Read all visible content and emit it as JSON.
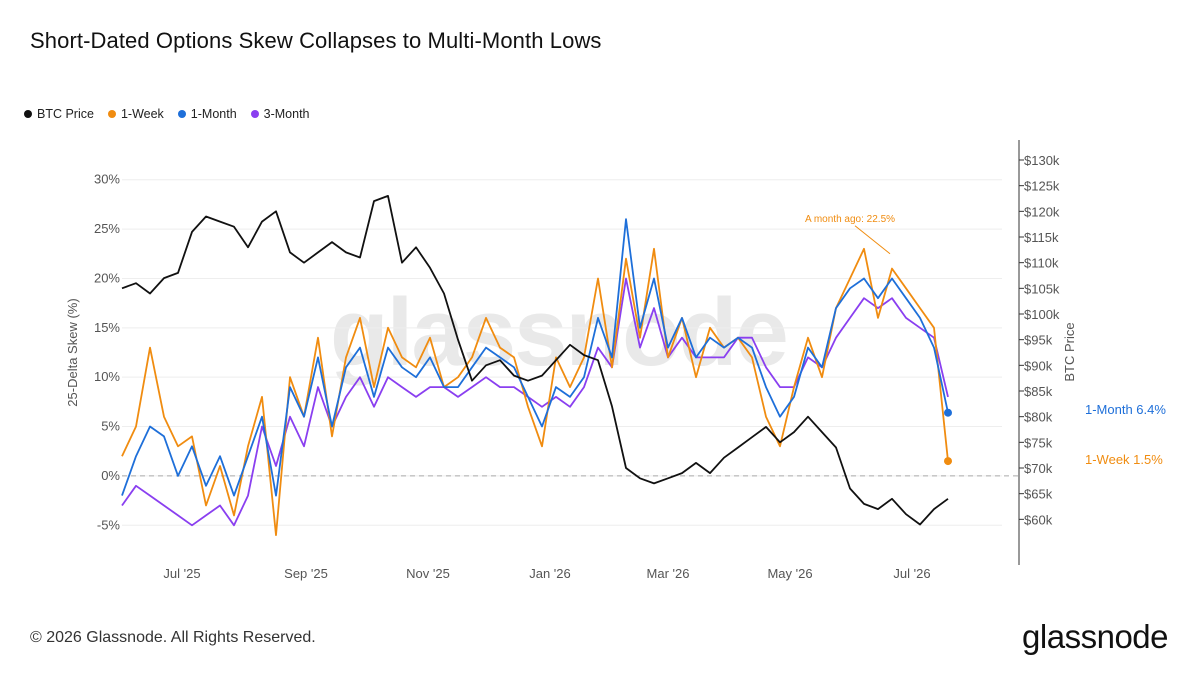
{
  "title": "Short-Dated Options Skew Collapses to Multi-Month Lows",
  "legend": [
    {
      "label": "BTC Price",
      "color": "#111111"
    },
    {
      "label": "1-Week",
      "color": "#f08c10"
    },
    {
      "label": "1-Month",
      "color": "#1e6fd9"
    },
    {
      "label": "3-Month",
      "color": "#8a3ff0"
    }
  ],
  "footer": "© 2026 Glassnode. All Rights Reserved.",
  "brand": "glassnode",
  "watermark": "glassnode",
  "chart_data": {
    "type": "line",
    "ylabel_left": "25-Delta Skew (%)",
    "ylabel_right": "BTC Price",
    "ylim_left": [
      -7,
      32
    ],
    "ylim_right": [
      55000,
      130000
    ],
    "yticks_left": [
      {
        "v": 30,
        "label": "30%"
      },
      {
        "v": 25,
        "label": "25%"
      },
      {
        "v": 20,
        "label": "20%"
      },
      {
        "v": 15,
        "label": "15%"
      },
      {
        "v": 10,
        "label": "10%"
      },
      {
        "v": 5,
        "label": "5%"
      },
      {
        "v": 0,
        "label": "0%"
      },
      {
        "v": -5,
        "label": "-5%"
      }
    ],
    "yticks_right": [
      {
        "v": 130000,
        "label": "$130k"
      },
      {
        "v": 125000,
        "label": "$125k"
      },
      {
        "v": 120000,
        "label": "$120k"
      },
      {
        "v": 115000,
        "label": "$115k"
      },
      {
        "v": 110000,
        "label": "$110k"
      },
      {
        "v": 105000,
        "label": "$105k"
      },
      {
        "v": 100000,
        "label": "$100k"
      },
      {
        "v": 95000,
        "label": "$95k"
      },
      {
        "v": 90000,
        "label": "$90k"
      },
      {
        "v": 85000,
        "label": "$85k"
      },
      {
        "v": 80000,
        "label": "$80k"
      },
      {
        "v": 75000,
        "label": "$75k"
      },
      {
        "v": 70000,
        "label": "$70k"
      },
      {
        "v": 65000,
        "label": "$65k"
      },
      {
        "v": 60000,
        "label": "$60k"
      }
    ],
    "xlim": [
      "2025-06-01",
      "2026-07-31"
    ],
    "xticks": [
      {
        "v": "2025-07-01",
        "label": "Jul '25"
      },
      {
        "v": "2025-09-01",
        "label": "Sep '25"
      },
      {
        "v": "2025-11-01",
        "label": "Nov '25"
      },
      {
        "v": "2026-01-01",
        "label": "Jan '26"
      },
      {
        "v": "2026-03-01",
        "label": "Mar '26"
      },
      {
        "v": "2026-05-01",
        "label": "May '26"
      },
      {
        "v": "2026-07-01",
        "label": "Jul '26"
      }
    ],
    "zero_line": true,
    "series": [
      {
        "name": "BTC Price",
        "color": "#111111",
        "axis": "right",
        "x": [
          "2025-06-01",
          "2025-06-08",
          "2025-06-15",
          "2025-06-22",
          "2025-06-29",
          "2025-07-06",
          "2025-07-13",
          "2025-07-20",
          "2025-07-27",
          "2025-08-03",
          "2025-08-10",
          "2025-08-17",
          "2025-08-24",
          "2025-08-31",
          "2025-09-07",
          "2025-09-14",
          "2025-09-21",
          "2025-09-28",
          "2025-10-05",
          "2025-10-12",
          "2025-10-19",
          "2025-10-26",
          "2025-11-02",
          "2025-11-09",
          "2025-11-16",
          "2025-11-23",
          "2025-11-30",
          "2025-12-07",
          "2025-12-14",
          "2025-12-21",
          "2025-12-28",
          "2026-01-04",
          "2026-01-11",
          "2026-01-18",
          "2026-01-25",
          "2026-02-01",
          "2026-02-08",
          "2026-02-15",
          "2026-02-22",
          "2026-03-01",
          "2026-03-08",
          "2026-03-15",
          "2026-03-22",
          "2026-03-29",
          "2026-04-05",
          "2026-04-12",
          "2026-04-19",
          "2026-04-26",
          "2026-05-03",
          "2026-05-10",
          "2026-05-17",
          "2026-05-24",
          "2026-05-31",
          "2026-06-07",
          "2026-06-14",
          "2026-06-21",
          "2026-06-28",
          "2026-07-05",
          "2026-07-12",
          "2026-07-19"
        ],
        "values": [
          105000,
          106000,
          104000,
          107000,
          108000,
          116000,
          119000,
          118000,
          117000,
          113000,
          118000,
          120000,
          112000,
          110000,
          112000,
          114000,
          112000,
          111000,
          122000,
          123000,
          110000,
          113000,
          109000,
          104000,
          95000,
          87000,
          90000,
          91000,
          88000,
          87000,
          88000,
          91000,
          94000,
          92000,
          91000,
          82000,
          70000,
          68000,
          67000,
          68000,
          69000,
          71000,
          69000,
          72000,
          74000,
          76000,
          78000,
          75000,
          77000,
          80000,
          77000,
          74000,
          66000,
          63000,
          62000,
          64000,
          61000,
          59000,
          62000,
          64000
        ]
      },
      {
        "name": "1-Week",
        "color": "#f08c10",
        "axis": "left",
        "x": [
          "2025-06-01",
          "2025-06-08",
          "2025-06-15",
          "2025-06-22",
          "2025-06-29",
          "2025-07-06",
          "2025-07-13",
          "2025-07-20",
          "2025-07-27",
          "2025-08-03",
          "2025-08-10",
          "2025-08-17",
          "2025-08-24",
          "2025-08-31",
          "2025-09-07",
          "2025-09-14",
          "2025-09-21",
          "2025-09-28",
          "2025-10-05",
          "2025-10-12",
          "2025-10-19",
          "2025-10-26",
          "2025-11-02",
          "2025-11-09",
          "2025-11-16",
          "2025-11-23",
          "2025-11-30",
          "2025-12-07",
          "2025-12-14",
          "2025-12-21",
          "2025-12-28",
          "2026-01-04",
          "2026-01-11",
          "2026-01-18",
          "2026-01-25",
          "2026-02-01",
          "2026-02-08",
          "2026-02-15",
          "2026-02-22",
          "2026-03-01",
          "2026-03-08",
          "2026-03-15",
          "2026-03-22",
          "2026-03-29",
          "2026-04-05",
          "2026-04-12",
          "2026-04-19",
          "2026-04-26",
          "2026-05-03",
          "2026-05-10",
          "2026-05-17",
          "2026-05-24",
          "2026-05-31",
          "2026-06-07",
          "2026-06-14",
          "2026-06-21",
          "2026-06-28",
          "2026-07-05",
          "2026-07-12",
          "2026-07-19"
        ],
        "values": [
          2,
          5,
          13,
          6,
          3,
          4,
          -3,
          1,
          -4,
          3,
          8,
          -6,
          10,
          6,
          14,
          4,
          12,
          16,
          9,
          15,
          12,
          11,
          14,
          9,
          10,
          12,
          16,
          13,
          12,
          7,
          3,
          12,
          9,
          12,
          20,
          11,
          22,
          14,
          23,
          12,
          16,
          10,
          15,
          13,
          14,
          12,
          6,
          3,
          9,
          14,
          10,
          17,
          20,
          23,
          16,
          21,
          19,
          17,
          15,
          1.5
        ]
      },
      {
        "name": "1-Month",
        "color": "#1e6fd9",
        "axis": "left",
        "x": [
          "2025-06-01",
          "2025-06-08",
          "2025-06-15",
          "2025-06-22",
          "2025-06-29",
          "2025-07-06",
          "2025-07-13",
          "2025-07-20",
          "2025-07-27",
          "2025-08-03",
          "2025-08-10",
          "2025-08-17",
          "2025-08-24",
          "2025-08-31",
          "2025-09-07",
          "2025-09-14",
          "2025-09-21",
          "2025-09-28",
          "2025-10-05",
          "2025-10-12",
          "2025-10-19",
          "2025-10-26",
          "2025-11-02",
          "2025-11-09",
          "2025-11-16",
          "2025-11-23",
          "2025-11-30",
          "2025-12-07",
          "2025-12-14",
          "2025-12-21",
          "2025-12-28",
          "2026-01-04",
          "2026-01-11",
          "2026-01-18",
          "2026-01-25",
          "2026-02-01",
          "2026-02-08",
          "2026-02-15",
          "2026-02-22",
          "2026-03-01",
          "2026-03-08",
          "2026-03-15",
          "2026-03-22",
          "2026-03-29",
          "2026-04-05",
          "2026-04-12",
          "2026-04-19",
          "2026-04-26",
          "2026-05-03",
          "2026-05-10",
          "2026-05-17",
          "2026-05-24",
          "2026-05-31",
          "2026-06-07",
          "2026-06-14",
          "2026-06-21",
          "2026-06-28",
          "2026-07-05",
          "2026-07-12",
          "2026-07-19"
        ],
        "values": [
          -2,
          2,
          5,
          4,
          0,
          3,
          -1,
          2,
          -2,
          2,
          6,
          -2,
          9,
          6,
          12,
          5,
          11,
          13,
          8,
          13,
          11,
          10,
          12,
          9,
          9,
          11,
          13,
          12,
          11,
          8,
          5,
          9,
          8,
          10,
          16,
          12,
          26,
          15,
          20,
          13,
          16,
          12,
          14,
          13,
          14,
          13,
          9,
          6,
          8,
          13,
          11,
          17,
          19,
          20,
          18,
          20,
          18,
          16,
          13,
          6.4
        ]
      },
      {
        "name": "3-Month",
        "color": "#8a3ff0",
        "axis": "left",
        "x": [
          "2025-06-01",
          "2025-06-08",
          "2025-06-15",
          "2025-06-22",
          "2025-06-29",
          "2025-07-06",
          "2025-07-13",
          "2025-07-20",
          "2025-07-27",
          "2025-08-03",
          "2025-08-10",
          "2025-08-17",
          "2025-08-24",
          "2025-08-31",
          "2025-09-07",
          "2025-09-14",
          "2025-09-21",
          "2025-09-28",
          "2025-10-05",
          "2025-10-12",
          "2025-10-19",
          "2025-10-26",
          "2025-11-02",
          "2025-11-09",
          "2025-11-16",
          "2025-11-23",
          "2025-11-30",
          "2025-12-07",
          "2025-12-14",
          "2025-12-21",
          "2025-12-28",
          "2026-01-04",
          "2026-01-11",
          "2026-01-18",
          "2026-01-25",
          "2026-02-01",
          "2026-02-08",
          "2026-02-15",
          "2026-02-22",
          "2026-03-01",
          "2026-03-08",
          "2026-03-15",
          "2026-03-22",
          "2026-03-29",
          "2026-04-05",
          "2026-04-12",
          "2026-04-19",
          "2026-04-26",
          "2026-05-03",
          "2026-05-10",
          "2026-05-17",
          "2026-05-24",
          "2026-05-31",
          "2026-06-07",
          "2026-06-14",
          "2026-06-21",
          "2026-06-28",
          "2026-07-05",
          "2026-07-12",
          "2026-07-19"
        ],
        "values": [
          -3,
          -1,
          -2,
          -3,
          -4,
          -5,
          -4,
          -3,
          -5,
          -2,
          5,
          1,
          6,
          3,
          9,
          5,
          8,
          10,
          7,
          10,
          9,
          8,
          9,
          9,
          8,
          9,
          10,
          9,
          9,
          8,
          7,
          8,
          7,
          9,
          13,
          11,
          20,
          13,
          17,
          12,
          14,
          12,
          12,
          12,
          14,
          14,
          11,
          9,
          9,
          12,
          11,
          14,
          16,
          18,
          17,
          18,
          16,
          15,
          14,
          8
        ]
      }
    ],
    "annotations": [
      {
        "text": "A month ago: 22.5%",
        "color": "#f08c10",
        "x": "2026-06-20",
        "y": 22.5
      }
    ],
    "end_labels": [
      {
        "text": "1-Month 6.4%",
        "color": "#1e6fd9",
        "value": 6.4
      },
      {
        "text": "1-Week 1.5%",
        "color": "#f08c10",
        "value": 1.5
      }
    ]
  }
}
